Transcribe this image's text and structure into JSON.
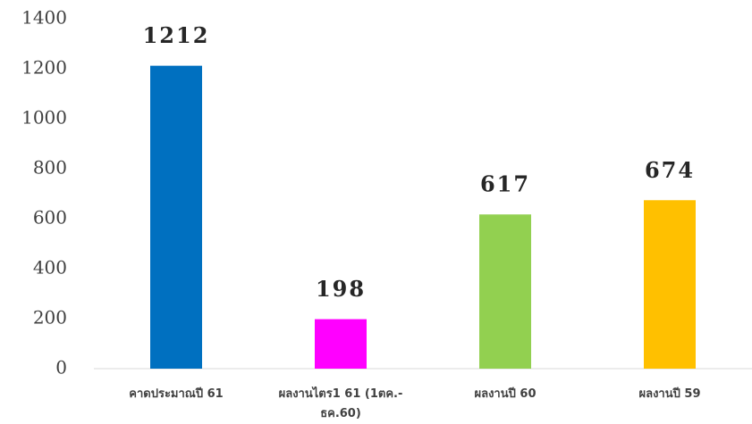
{
  "chart_data": {
    "type": "bar",
    "categories": [
      "คาดประมาณปี 61",
      "ผลงานไตร1 61 (1ตค.-ธค.60)",
      "ผลงานปี 60",
      "ผลงานปี 59"
    ],
    "values": [
      1212,
      198,
      617,
      674
    ],
    "colors": [
      "#0070c0",
      "#ff00ff",
      "#92d050",
      "#ffc000"
    ],
    "ylim": [
      0,
      1400
    ],
    "yticks": [
      0,
      200,
      400,
      600,
      800,
      1000,
      1200,
      1400
    ],
    "grid": false
  }
}
